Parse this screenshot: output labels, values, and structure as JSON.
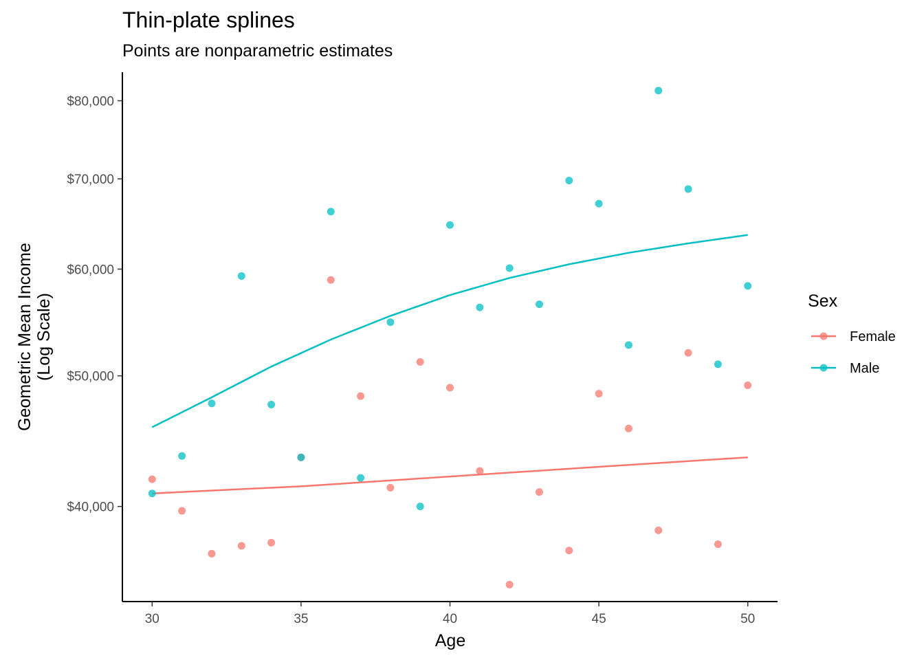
{
  "chart_data": {
    "type": "scatter",
    "title": "Thin-plate splines",
    "subtitle": "Points are nonparametric estimates",
    "xlabel": "Age",
    "ylabel": [
      "Geometric Mean Income",
      "(Log Scale)"
    ],
    "y_scale": "log",
    "xlim": [
      29,
      51
    ],
    "ylim": [
      34000,
      84000
    ],
    "x_ticks": [
      30,
      35,
      40,
      45,
      50
    ],
    "x_tick_labels": [
      "30",
      "35",
      "40",
      "45",
      "50"
    ],
    "y_ticks": [
      40000,
      50000,
      60000,
      70000,
      80000
    ],
    "y_tick_labels": [
      "$40,000",
      "$50,000",
      "$60,000",
      "$70,000",
      "$80,000"
    ],
    "grid": false,
    "legend": {
      "title": "Sex",
      "position": "right"
    },
    "series": [
      {
        "name": "Female",
        "color": "#F8766D",
        "points": [
          {
            "x": 30,
            "y": 41900
          },
          {
            "x": 31,
            "y": 39700
          },
          {
            "x": 32,
            "y": 36900
          },
          {
            "x": 33,
            "y": 37400
          },
          {
            "x": 34,
            "y": 37600
          },
          {
            "x": 35,
            "y": 43500
          },
          {
            "x": 36,
            "y": 58900
          },
          {
            "x": 37,
            "y": 48300
          },
          {
            "x": 38,
            "y": 41300
          },
          {
            "x": 39,
            "y": 51200
          },
          {
            "x": 40,
            "y": 49000
          },
          {
            "x": 41,
            "y": 42500
          },
          {
            "x": 42,
            "y": 35000
          },
          {
            "x": 43,
            "y": 41000
          },
          {
            "x": 44,
            "y": 37100
          },
          {
            "x": 45,
            "y": 48500
          },
          {
            "x": 46,
            "y": 45700
          },
          {
            "x": 47,
            "y": 38400
          },
          {
            "x": 48,
            "y": 52000
          },
          {
            "x": 49,
            "y": 37500
          },
          {
            "x": 50,
            "y": 49200
          }
        ],
        "spline": [
          {
            "x": 30,
            "y": 40900
          },
          {
            "x": 35,
            "y": 41400
          },
          {
            "x": 40,
            "y": 42100
          },
          {
            "x": 45,
            "y": 42800
          },
          {
            "x": 50,
            "y": 43500
          }
        ]
      },
      {
        "name": "Male",
        "color": "#00BFC4",
        "points": [
          {
            "x": 30,
            "y": 40900
          },
          {
            "x": 31,
            "y": 43600
          },
          {
            "x": 32,
            "y": 47700
          },
          {
            "x": 33,
            "y": 59300
          },
          {
            "x": 34,
            "y": 47600
          },
          {
            "x": 35,
            "y": 43500
          },
          {
            "x": 36,
            "y": 66200
          },
          {
            "x": 37,
            "y": 42000
          },
          {
            "x": 38,
            "y": 54800
          },
          {
            "x": 39,
            "y": 40000
          },
          {
            "x": 40,
            "y": 64700
          },
          {
            "x": 41,
            "y": 56200
          },
          {
            "x": 42,
            "y": 60100
          },
          {
            "x": 43,
            "y": 56500
          },
          {
            "x": 44,
            "y": 69800
          },
          {
            "x": 45,
            "y": 67100
          },
          {
            "x": 46,
            "y": 52700
          },
          {
            "x": 47,
            "y": 81400
          },
          {
            "x": 48,
            "y": 68800
          },
          {
            "x": 49,
            "y": 51000
          },
          {
            "x": 50,
            "y": 58300
          }
        ],
        "spline": [
          {
            "x": 30,
            "y": 45800
          },
          {
            "x": 32,
            "y": 48200
          },
          {
            "x": 34,
            "y": 50800
          },
          {
            "x": 36,
            "y": 53200
          },
          {
            "x": 38,
            "y": 55400
          },
          {
            "x": 40,
            "y": 57400
          },
          {
            "x": 42,
            "y": 59100
          },
          {
            "x": 44,
            "y": 60500
          },
          {
            "x": 46,
            "y": 61700
          },
          {
            "x": 48,
            "y": 62700
          },
          {
            "x": 50,
            "y": 63600
          }
        ]
      }
    ]
  }
}
